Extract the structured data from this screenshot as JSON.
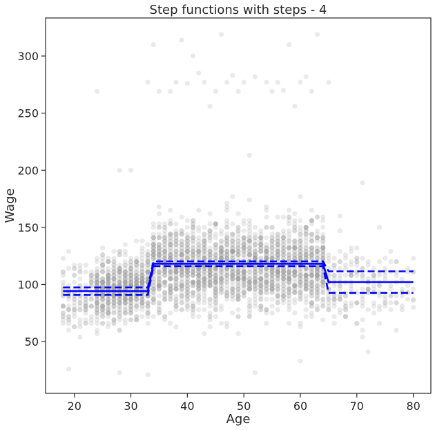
{
  "chart_data": {
    "type": "scatter",
    "title": "Step functions with steps - 4",
    "xlabel": "Age",
    "ylabel": "Wage",
    "xlim": [
      14.9,
      83.1
    ],
    "ylim": [
      4.7,
      333.3
    ],
    "xticks": [
      20,
      30,
      40,
      50,
      60,
      70,
      80
    ],
    "yticks": [
      50,
      100,
      150,
      200,
      250,
      300
    ],
    "grid": false,
    "colors": {
      "points": "#9e9e9e",
      "fit": "#0000ff"
    },
    "scatter_summary": {
      "description_note": "Dense cloud of grey translucent points (Age vs Wage); representative sample reproduced.",
      "seed": 7
    },
    "outlier_points": [
      {
        "x": 24,
        "y": 269
      },
      {
        "x": 28,
        "y": 200
      },
      {
        "x": 30,
        "y": 200
      },
      {
        "x": 33,
        "y": 277
      },
      {
        "x": 34,
        "y": 310
      },
      {
        "x": 35,
        "y": 269
      },
      {
        "x": 37,
        "y": 269
      },
      {
        "x": 38,
        "y": 277
      },
      {
        "x": 39,
        "y": 314
      },
      {
        "x": 40,
        "y": 276
      },
      {
        "x": 41,
        "y": 300
      },
      {
        "x": 42,
        "y": 285
      },
      {
        "x": 43,
        "y": 277
      },
      {
        "x": 44,
        "y": 256
      },
      {
        "x": 45,
        "y": 269
      },
      {
        "x": 46,
        "y": 319
      },
      {
        "x": 47,
        "y": 277
      },
      {
        "x": 48,
        "y": 283
      },
      {
        "x": 49,
        "y": 269
      },
      {
        "x": 50,
        "y": 277
      },
      {
        "x": 51,
        "y": 213
      },
      {
        "x": 52,
        "y": 282
      },
      {
        "x": 54,
        "y": 277
      },
      {
        "x": 55,
        "y": 269
      },
      {
        "x": 56,
        "y": 277
      },
      {
        "x": 57,
        "y": 270
      },
      {
        "x": 58,
        "y": 310
      },
      {
        "x": 59,
        "y": 256
      },
      {
        "x": 60,
        "y": 277
      },
      {
        "x": 61,
        "y": 282
      },
      {
        "x": 62,
        "y": 269
      },
      {
        "x": 63,
        "y": 319
      },
      {
        "x": 65,
        "y": 277
      },
      {
        "x": 67,
        "y": 160
      },
      {
        "x": 71,
        "y": 189
      },
      {
        "x": 74,
        "y": 150
      },
      {
        "x": 77,
        "y": 120
      },
      {
        "x": 80,
        "y": 86
      },
      {
        "x": 80,
        "y": 80
      },
      {
        "x": 72,
        "y": 41
      },
      {
        "x": 33,
        "y": 21
      },
      {
        "x": 52,
        "y": 23
      },
      {
        "x": 60,
        "y": 33
      },
      {
        "x": 19,
        "y": 26
      },
      {
        "x": 28,
        "y": 23
      }
    ],
    "series": [
      {
        "style": "solid",
        "x": [
          18,
          33,
          34,
          64,
          65,
          80
        ],
        "y": [
          94.2,
          94.2,
          118.2,
          118.2,
          102.1,
          102.1
        ]
      },
      {
        "style": "dashed",
        "x": [
          18,
          33,
          34,
          64,
          65,
          80
        ],
        "y": [
          97.4,
          97.4,
          120.3,
          120.3,
          111.5,
          111.5
        ]
      },
      {
        "style": "dashed",
        "x": [
          18,
          33,
          34,
          64,
          65,
          80
        ],
        "y": [
          91.0,
          91.0,
          116.1,
          116.1,
          92.7,
          92.7
        ]
      }
    ]
  }
}
